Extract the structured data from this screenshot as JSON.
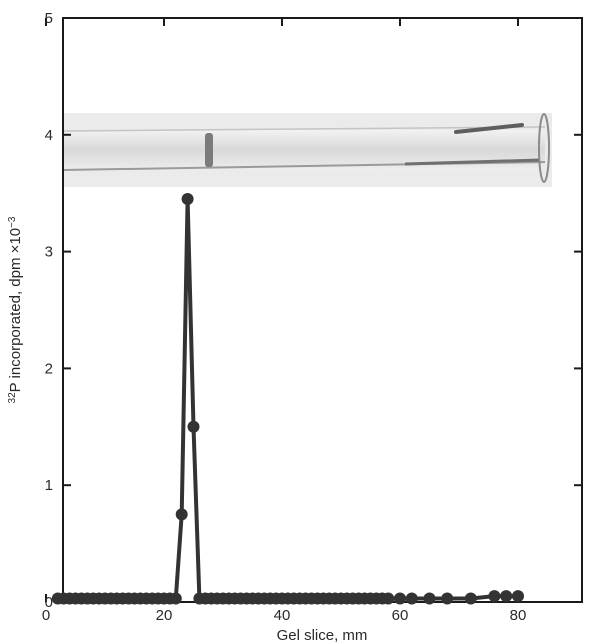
{
  "chart_data": {
    "type": "line",
    "title": "",
    "xlabel": "Gel slice, mm",
    "ylabel": {
      "sup_prefix": "32",
      "text": "P incorporated, dpm ×10",
      "sup_suffix": "−3"
    },
    "xlim": [
      0,
      90
    ],
    "ylim": [
      0,
      5
    ],
    "x_ticks": [
      0,
      20,
      40,
      60,
      80
    ],
    "x_tick_labels": [
      "0",
      "20",
      "40",
      "60",
      "80"
    ],
    "y_ticks": [
      0,
      1,
      2,
      3,
      4,
      5
    ],
    "y_tick_labels": [
      "0",
      "1",
      "2",
      "3",
      "4",
      "5"
    ],
    "grid": false,
    "legend": "none",
    "inset": "photograph of gel tube, spanning 0–85 mm, shown behind the upper part of the plot",
    "series": [
      {
        "color": "#333333",
        "points": [
          [
            2,
            0.03
          ],
          [
            3,
            0.03
          ],
          [
            4,
            0.03
          ],
          [
            5,
            0.03
          ],
          [
            6,
            0.03
          ],
          [
            7,
            0.03
          ],
          [
            8,
            0.03
          ],
          [
            9,
            0.03
          ],
          [
            10,
            0.03
          ],
          [
            11,
            0.03
          ],
          [
            12,
            0.03
          ],
          [
            13,
            0.03
          ],
          [
            14,
            0.03
          ],
          [
            15,
            0.03
          ],
          [
            16,
            0.03
          ],
          [
            17,
            0.03
          ],
          [
            18,
            0.03
          ],
          [
            19,
            0.03
          ],
          [
            20,
            0.03
          ],
          [
            21,
            0.03
          ],
          [
            22,
            0.03
          ],
          [
            23,
            0.75
          ],
          [
            24,
            3.45
          ],
          [
            25,
            1.5
          ],
          [
            26,
            0.03
          ],
          [
            27,
            0.03
          ],
          [
            28,
            0.03
          ],
          [
            29,
            0.03
          ],
          [
            30,
            0.03
          ],
          [
            31,
            0.03
          ],
          [
            32,
            0.03
          ],
          [
            33,
            0.03
          ],
          [
            34,
            0.03
          ],
          [
            35,
            0.03
          ],
          [
            36,
            0.03
          ],
          [
            37,
            0.03
          ],
          [
            38,
            0.03
          ],
          [
            39,
            0.03
          ],
          [
            40,
            0.03
          ],
          [
            41,
            0.03
          ],
          [
            42,
            0.03
          ],
          [
            43,
            0.03
          ],
          [
            44,
            0.03
          ],
          [
            45,
            0.03
          ],
          [
            46,
            0.03
          ],
          [
            47,
            0.03
          ],
          [
            48,
            0.03
          ],
          [
            49,
            0.03
          ],
          [
            50,
            0.03
          ],
          [
            51,
            0.03
          ],
          [
            52,
            0.03
          ],
          [
            53,
            0.03
          ],
          [
            54,
            0.03
          ],
          [
            55,
            0.03
          ],
          [
            56,
            0.03
          ],
          [
            57,
            0.03
          ],
          [
            58,
            0.03
          ],
          [
            60,
            0.03
          ],
          [
            62,
            0.03
          ],
          [
            65,
            0.03
          ],
          [
            68,
            0.03
          ],
          [
            72,
            0.03
          ],
          [
            76,
            0.05
          ],
          [
            78,
            0.05
          ],
          [
            80,
            0.05
          ]
        ]
      }
    ]
  }
}
